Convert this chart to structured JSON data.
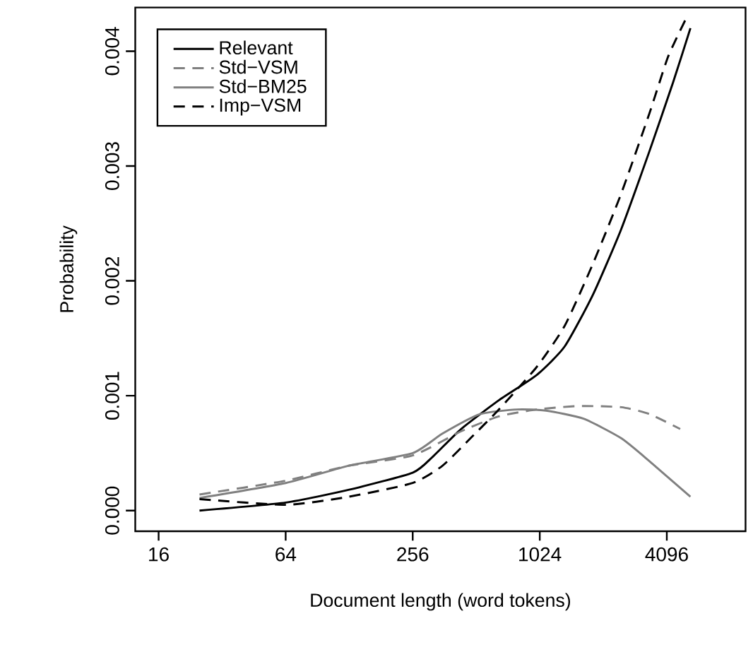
{
  "chart_data": {
    "type": "line",
    "xlabel": "Document length (word tokens)",
    "ylabel": "Probability",
    "log": "x",
    "xlim": [
      12.4,
      9670
    ],
    "ylim": [
      -0.00018,
      0.00438
    ],
    "xticks": [
      16,
      64,
      256,
      1024,
      4096
    ],
    "yticks": [
      {
        "value": 0,
        "label": "0.000"
      },
      {
        "value": 0.001,
        "label": "0.001"
      },
      {
        "value": 0.002,
        "label": "0.002"
      },
      {
        "value": 0.003,
        "label": "0.003"
      },
      {
        "value": 0.004,
        "label": "0.004"
      }
    ],
    "legend": "top left",
    "grid": false,
    "series": [
      {
        "name": "Relevant",
        "color": "#000000",
        "line_style": "solid",
        "x": [
          25,
          64,
          127,
          256,
          319,
          434,
          655,
          990,
          1345,
          1830,
          2490,
          3390,
          4390,
          5300
        ],
        "values": [
          0.0,
          7e-05,
          0.00018,
          0.00033,
          0.00047,
          0.00071,
          0.00096,
          0.00118,
          0.00143,
          0.00188,
          0.00245,
          0.00313,
          0.00373,
          0.0042
        ]
      },
      {
        "name": "Std−VSM",
        "color": "#808080",
        "line_style": "dashed",
        "x": [
          25,
          64,
          127,
          256,
          434,
          655,
          990,
          1560,
          2490,
          3390,
          4740
        ],
        "values": [
          0.00014,
          0.00026,
          0.00039,
          0.00048,
          0.00069,
          0.00082,
          0.00088,
          0.00091,
          0.0009,
          0.00084,
          0.00071
        ]
      },
      {
        "name": "Std−BM25",
        "color": "#808080",
        "line_style": "solid",
        "x": [
          25,
          64,
          127,
          256,
          354,
          534,
          803,
          1095,
          1650,
          2490,
          3390,
          5300
        ],
        "values": [
          0.00011,
          0.00024,
          0.00039,
          0.0005,
          0.00067,
          0.00084,
          0.00088,
          0.00087,
          0.0008,
          0.00063,
          0.00043,
          0.00012
        ]
      },
      {
        "name": "Imp−VSM",
        "color": "#000000",
        "line_style": "dashed",
        "x": [
          25,
          64,
          127,
          256,
          354,
          481,
          655,
          990,
          1345,
          1830,
          2490,
          3390,
          4150,
          5040
        ],
        "values": [
          0.0001,
          5e-05,
          0.00012,
          0.00024,
          0.00039,
          0.00063,
          0.00088,
          0.00125,
          0.00161,
          0.00215,
          0.00276,
          0.00346,
          0.00395,
          0.00428
        ]
      }
    ]
  }
}
